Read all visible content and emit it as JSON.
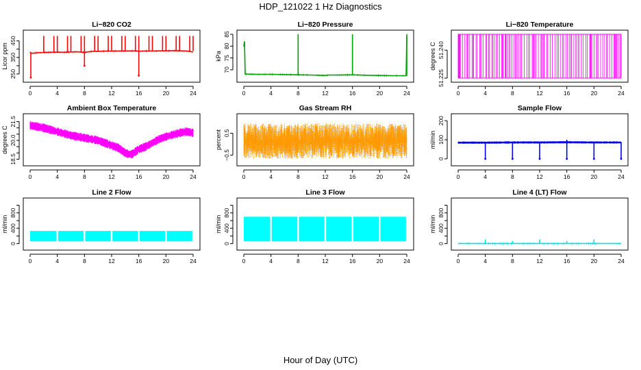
{
  "figure": {
    "title": "HDP_121022  1 Hz Diagnostics",
    "xlabel": "Hour of Day (UTC)"
  },
  "chart_data": [
    {
      "id": "co2",
      "type": "line",
      "title": "Li−820 CO2",
      "ylabel": "Licor ppm",
      "color": "#ff0000",
      "xlim": [
        0,
        24
      ],
      "ylim": [
        225,
        490
      ],
      "xticks": [
        "0",
        "4",
        "8",
        "12",
        "16",
        "20",
        "24"
      ],
      "yticks": [
        250,
        300,
        350,
        400,
        450
      ],
      "yticklabels": [
        "250",
        "",
        "350",
        "",
        "450"
      ],
      "x": [
        0,
        0.3,
        1,
        2,
        3,
        4,
        5,
        6,
        7,
        7.5,
        8,
        8.5,
        9,
        10,
        11,
        12,
        13,
        14,
        15,
        15.8,
        16,
        16.3,
        17,
        18,
        19,
        20,
        21,
        22,
        23,
        24
      ],
      "y": [
        380,
        375,
        378,
        380,
        381,
        382,
        381,
        383,
        384,
        382,
        380,
        383,
        386,
        387,
        388,
        388,
        389,
        389,
        390,
        389,
        387,
        388,
        389,
        389,
        390,
        390,
        391,
        390,
        389,
        383
      ],
      "spikes_up": [
        {
          "x": 2,
          "y": 480
        },
        {
          "x": 3.5,
          "y": 480
        },
        {
          "x": 4,
          "y": 480
        },
        {
          "x": 5.5,
          "y": 480
        },
        {
          "x": 6,
          "y": 480
        },
        {
          "x": 7.5,
          "y": 480
        },
        {
          "x": 8,
          "y": 480
        },
        {
          "x": 9.5,
          "y": 480
        },
        {
          "x": 10,
          "y": 480
        },
        {
          "x": 11.5,
          "y": 480
        },
        {
          "x": 12,
          "y": 480
        },
        {
          "x": 13.5,
          "y": 480
        },
        {
          "x": 14,
          "y": 480
        },
        {
          "x": 15.5,
          "y": 480
        },
        {
          "x": 16,
          "y": 480
        },
        {
          "x": 17.5,
          "y": 480
        },
        {
          "x": 18,
          "y": 480
        },
        {
          "x": 19.5,
          "y": 480
        },
        {
          "x": 20,
          "y": 480
        },
        {
          "x": 21.5,
          "y": 480
        },
        {
          "x": 22,
          "y": 480
        },
        {
          "x": 23.5,
          "y": 480
        },
        {
          "x": 24,
          "y": 480
        }
      ],
      "spikes_down": [
        {
          "x": 0.1,
          "y": 228
        },
        {
          "x": 8,
          "y": 300
        },
        {
          "x": 16,
          "y": 240
        }
      ]
    },
    {
      "id": "pressure",
      "type": "line",
      "title": "Li−820 Pressure",
      "ylabel": "kPa",
      "color": "#00a000",
      "xlim": [
        0,
        24
      ],
      "ylim": [
        66.5,
        85
      ],
      "xticks": [
        "0",
        "4",
        "8",
        "12",
        "16",
        "20",
        "24"
      ],
      "yticks": [
        70,
        75,
        80,
        85
      ],
      "yticklabels": [
        "70",
        "75",
        "80",
        "85"
      ],
      "x": [
        0,
        0.1,
        0.2,
        2,
        4,
        6,
        8,
        10,
        12,
        12.5,
        14,
        16,
        18,
        20,
        22,
        23.9,
        24
      ],
      "y": [
        80,
        82,
        68.2,
        68.1,
        68.1,
        68,
        67.9,
        67.8,
        67.6,
        67.8,
        67.8,
        67.9,
        67.7,
        67.6,
        67.5,
        67.5,
        84
      ],
      "spikes_up": [
        {
          "x": 8,
          "y": 85
        },
        {
          "x": 16,
          "y": 85
        },
        {
          "x": 24,
          "y": 85
        }
      ],
      "spikes_down": []
    },
    {
      "id": "temp",
      "type": "line",
      "title": "Li−820 Temperature",
      "ylabel": "degrees C",
      "color": "#ff00ff",
      "xlim": [
        0,
        24
      ],
      "ylim": [
        51.225,
        51.2485
      ],
      "xticks": [
        "0",
        "4",
        "8",
        "12",
        "16",
        "20",
        "24"
      ],
      "yticks": [
        51.225,
        51.24
      ],
      "yticklabels": [
        "51.225",
        "51.240"
      ],
      "binary_levels": [
        51.225,
        51.2485
      ],
      "x": [],
      "y": [],
      "spikes_up": [],
      "spikes_down": []
    },
    {
      "id": "box",
      "type": "line",
      "title": "Ambient Box Temperature",
      "ylabel": "degrees C",
      "color": "#ff00ff",
      "xlim": [
        0,
        24
      ],
      "ylim": [
        18.3,
        21.8
      ],
      "xticks": [
        "0",
        "4",
        "8",
        "12",
        "16",
        "20",
        "24"
      ],
      "yticks": [
        18.5,
        19.0,
        19.5,
        20.0,
        20.5,
        21.0,
        21.5
      ],
      "yticklabels": [
        "18.5",
        "",
        "",
        "20.0",
        "",
        "",
        "21.5"
      ],
      "x": [
        0,
        2,
        4,
        6,
        8,
        10,
        12,
        13,
        14,
        14.5,
        15,
        16,
        17,
        18,
        19,
        20,
        22,
        23,
        24
      ],
      "y": [
        21.2,
        21.0,
        20.7,
        20.4,
        20.2,
        20.0,
        19.6,
        19.4,
        19.0,
        18.9,
        18.9,
        19.3,
        19.5,
        19.8,
        20.1,
        20.3,
        20.6,
        20.7,
        20.6
      ],
      "spread": 0.35,
      "spikes_up": [],
      "spikes_down": []
    },
    {
      "id": "rh",
      "type": "line",
      "title": "Gas Stream RH",
      "ylabel": "percent",
      "color": "#ff9900",
      "xlim": [
        0,
        24
      ],
      "ylim": [
        -0.8,
        1.2
      ],
      "xticks": [
        "0",
        "4",
        "8",
        "12",
        "16",
        "20",
        "24"
      ],
      "yticks": [
        -0.5,
        0.5
      ],
      "yticklabels": [
        "−0.5",
        "0.5"
      ],
      "x": [
        0,
        4,
        8,
        12,
        16,
        20,
        24
      ],
      "y": [
        0.2,
        0.2,
        0.2,
        0.2,
        0.2,
        0.2,
        0.2
      ],
      "noise_min": -0.65,
      "noise_max": 0.95,
      "spikes_up": [],
      "spikes_down": []
    },
    {
      "id": "sample",
      "type": "line",
      "title": "Sample Flow",
      "ylabel": "ml/min",
      "color": "#0000ee",
      "xlim": [
        0,
        24
      ],
      "ylim": [
        -15,
        215
      ],
      "xticks": [
        "0",
        "4",
        "8",
        "12",
        "16",
        "20",
        "24"
      ],
      "yticks": [
        0,
        100,
        200
      ],
      "yticklabels": [
        "0",
        "100",
        "200"
      ],
      "x": [
        0,
        4,
        8,
        12,
        16,
        20,
        24
      ],
      "y": [
        85,
        85,
        86,
        86,
        87,
        86,
        86
      ],
      "spread": 6,
      "spikes_up": [
        {
          "x": 16,
          "y": 100
        }
      ],
      "spikes_down": [
        {
          "x": 4,
          "y": 0
        },
        {
          "x": 8,
          "y": 0
        },
        {
          "x": 12,
          "y": 0
        },
        {
          "x": 16,
          "y": 0
        },
        {
          "x": 20,
          "y": 0
        },
        {
          "x": 24,
          "y": 0
        }
      ]
    },
    {
      "id": "line2",
      "type": "area",
      "title": "Line 2 Flow",
      "ylabel": "ml/min",
      "color": "#00ffff",
      "xlim": [
        0,
        24
      ],
      "ylim": [
        -60,
        1080
      ],
      "xticks": [
        "0",
        "4",
        "8",
        "12",
        "16",
        "20",
        "24"
      ],
      "yticks": [
        0,
        200,
        400,
        600,
        800,
        1000
      ],
      "yticklabels": [
        "0",
        "",
        "400",
        "",
        "800",
        ""
      ],
      "band_low": 60,
      "band_high": 330,
      "gaps": [
        4,
        8,
        12,
        16,
        20
      ],
      "x": [],
      "y": [],
      "spikes_up": [],
      "spikes_down": []
    },
    {
      "id": "line3",
      "type": "area",
      "title": "Line 3 Flow",
      "ylabel": "ml/min",
      "color": "#00ffff",
      "xlim": [
        0,
        24
      ],
      "ylim": [
        -60,
        1080
      ],
      "xticks": [
        "0",
        "4",
        "8",
        "12",
        "16",
        "20",
        "24"
      ],
      "yticks": [
        0,
        200,
        400,
        600,
        800,
        1000
      ],
      "yticklabels": [
        "0",
        "",
        "400",
        "",
        "800",
        ""
      ],
      "band_low": 60,
      "band_high": 700,
      "gaps": [
        4,
        8,
        12,
        16,
        20
      ],
      "x": [],
      "y": [],
      "spikes_up": [],
      "spikes_down": []
    },
    {
      "id": "line4",
      "type": "line",
      "title": "Line 4 (LT) Flow",
      "ylabel": "ml/min",
      "color": "#00e0e0",
      "xlim": [
        0,
        24
      ],
      "ylim": [
        -60,
        1080
      ],
      "xticks": [
        "0",
        "4",
        "8",
        "12",
        "16",
        "20",
        "24"
      ],
      "yticks": [
        0,
        200,
        400,
        600,
        800,
        1000
      ],
      "yticklabels": [
        "0",
        "",
        "400",
        "",
        "800",
        ""
      ],
      "x": [
        0,
        24
      ],
      "y": [
        5,
        5
      ],
      "spikes_up": [
        {
          "x": 4,
          "y": 110
        },
        {
          "x": 8,
          "y": 70
        },
        {
          "x": 12,
          "y": 110
        },
        {
          "x": 16,
          "y": 70
        },
        {
          "x": 20,
          "y": 110
        }
      ],
      "spikes_down": []
    }
  ]
}
